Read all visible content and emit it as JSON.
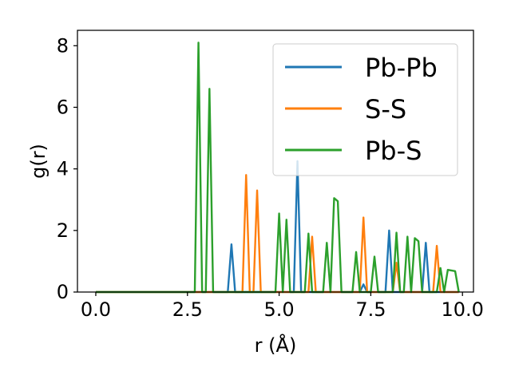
{
  "chart_data": {
    "type": "line",
    "xlabel": "r (Å)",
    "ylabel": "g(r)",
    "xlim": [
      -0.5,
      10.3
    ],
    "ylim": [
      0,
      8.5
    ],
    "xticks": [
      0.0,
      2.5,
      5.0,
      7.5,
      10.0
    ],
    "xtick_labels": [
      "0.0",
      "2.5",
      "5.0",
      "7.5",
      "10.0"
    ],
    "yticks": [
      0,
      2,
      4,
      6,
      8
    ],
    "ytick_labels": [
      "0",
      "2",
      "4",
      "6",
      "8"
    ],
    "legend_position": "top-right",
    "grid": false,
    "series": [
      {
        "name": "Pb-Pb",
        "color": "#1f77b4",
        "x": [
          0.0,
          3.6,
          3.7,
          3.8,
          5.4,
          5.5,
          5.6,
          7.2,
          7.3,
          7.4,
          7.9,
          8.0,
          8.1,
          8.9,
          9.0,
          9.1,
          9.9
        ],
        "y": [
          0.0,
          0.0,
          1.55,
          0.0,
          0.0,
          4.25,
          0.0,
          0.0,
          0.25,
          0.0,
          0.0,
          2.0,
          0.0,
          0.0,
          1.6,
          0.0,
          0.0
        ]
      },
      {
        "name": "S-S",
        "color": "#ff7f0e",
        "x": [
          0.0,
          4.0,
          4.1,
          4.2,
          4.3,
          4.4,
          4.5,
          5.8,
          5.9,
          6.0,
          7.2,
          7.3,
          7.4,
          8.1,
          8.2,
          8.3,
          9.2,
          9.3,
          9.4,
          9.9
        ],
        "y": [
          0.0,
          0.0,
          3.8,
          0.0,
          0.0,
          3.3,
          0.0,
          0.0,
          1.8,
          0.0,
          0.0,
          2.42,
          0.0,
          0.0,
          0.95,
          0.0,
          0.0,
          1.5,
          0.0,
          0.0
        ]
      },
      {
        "name": "Pb-S",
        "color": "#2ca02c",
        "x": [
          0.0,
          2.7,
          2.8,
          2.9,
          3.0,
          3.1,
          3.2,
          4.9,
          5.0,
          5.1,
          5.2,
          5.3,
          5.7,
          5.8,
          5.9,
          6.2,
          6.3,
          6.4,
          6.5,
          6.6,
          6.7,
          7.0,
          7.1,
          7.2,
          7.5,
          7.6,
          7.7,
          8.1,
          8.2,
          8.3,
          8.4,
          8.5,
          8.6,
          8.7,
          8.8,
          8.9,
          9.3,
          9.4,
          9.5,
          9.6,
          9.8,
          9.9
        ],
        "y": [
          0.0,
          0.0,
          8.1,
          0.0,
          0.0,
          6.6,
          0.0,
          0.0,
          2.55,
          0.0,
          2.35,
          0.0,
          0.0,
          1.9,
          0.0,
          0.0,
          1.6,
          0.0,
          3.05,
          2.95,
          0.0,
          0.0,
          1.3,
          0.0,
          0.0,
          1.15,
          0.0,
          0.0,
          1.93,
          0.0,
          0.0,
          1.8,
          0.0,
          1.75,
          1.65,
          0.0,
          0.0,
          0.78,
          0.0,
          0.72,
          0.68,
          0.0
        ]
      }
    ]
  }
}
